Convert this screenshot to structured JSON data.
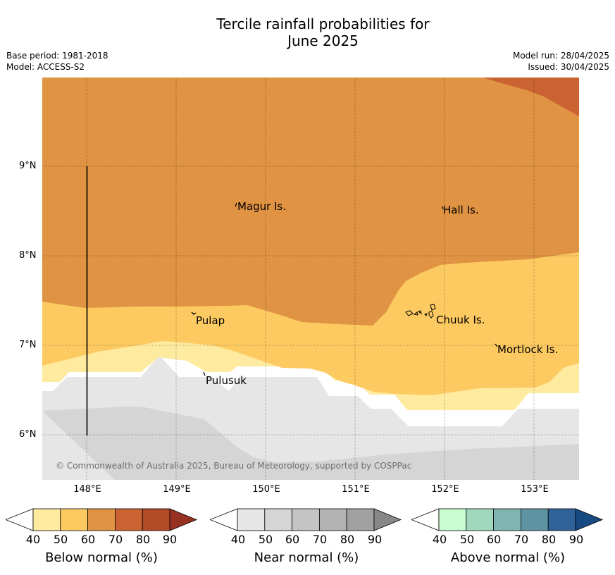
{
  "title": "Tercile rainfall probabilities for",
  "subtitle": "June 2025",
  "meta_left": [
    "Base period: 1981-2018",
    "Model: ACCESS-S2"
  ],
  "meta_right": [
    "Model run: 28/04/2025",
    "Issued: 30/04/2025"
  ],
  "lat_labels": [
    "9°N",
    "8°N",
    "7°N",
    "6°N"
  ],
  "lon_labels": [
    "148°E",
    "149°E",
    "150°E",
    "151°E",
    "152°E",
    "153°E"
  ],
  "places": [
    "Magur Is.",
    "Hall Is.",
    "Pulap",
    "Chuuk Is.",
    "Mortlock Is.",
    "Pulusuk"
  ],
  "copyright": "© Commonwealth of Australia 2025, Bureau of Meteorology, supported by COSPPac",
  "colors": {
    "below": [
      "#ffeba0",
      "#fdca62",
      "#e09342",
      "#cb6231",
      "#b34b27",
      "#973223"
    ],
    "near": [
      "#e6e6e6",
      "#d5d5d5",
      "#c4c4c4",
      "#b2b2b2",
      "#a1a1a1",
      "#878787"
    ],
    "above": [
      "#c8fdd1",
      "#a0d8be",
      "#7fb4b0",
      "#5e94a1",
      "#2f6299",
      "#164a80"
    ]
  },
  "colorbars": [
    {
      "title": "Below normal (%)",
      "ticks": [
        "40",
        "50",
        "60",
        "70",
        "80",
        "90"
      ]
    },
    {
      "title": "Near normal (%)",
      "ticks": [
        "40",
        "50",
        "60",
        "70",
        "80",
        "90"
      ]
    },
    {
      "title": "Above normal (%)",
      "ticks": [
        "40",
        "50",
        "60",
        "70",
        "80",
        "90"
      ]
    }
  ]
}
